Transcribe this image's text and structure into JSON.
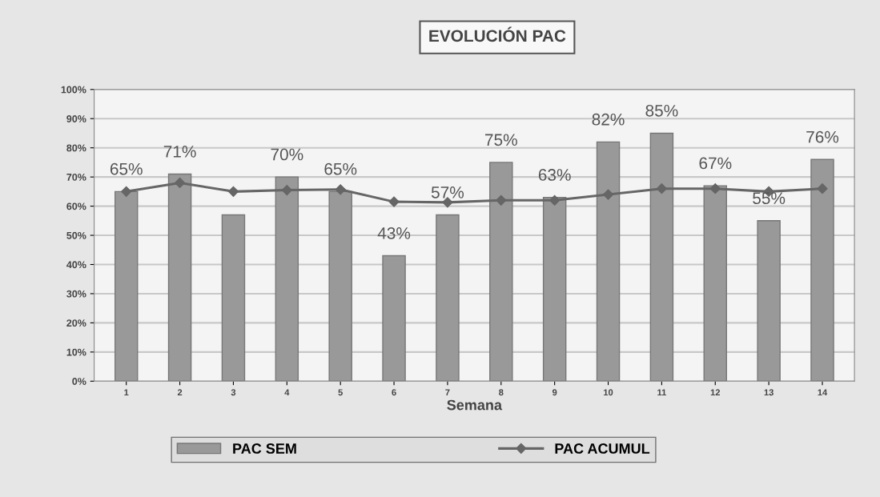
{
  "chart_data": {
    "type": "bar",
    "title": "EVOLUCIÓN PAC",
    "xlabel": "Semana",
    "categories": [
      "1",
      "2",
      "3",
      "4",
      "5",
      "6",
      "7",
      "8",
      "9",
      "10",
      "11",
      "12",
      "13",
      "14"
    ],
    "series": [
      {
        "name": "PAC SEM",
        "color": "#999999",
        "values": [
          65,
          71,
          57,
          70,
          65,
          43,
          57,
          75,
          63,
          82,
          85,
          67,
          55,
          76
        ],
        "value_labels": [
          "65%",
          "71%",
          null,
          "70%",
          "65%",
          "43%",
          "57%",
          "75%",
          "63%",
          "82%",
          "85%",
          "67%",
          "55%",
          "76%"
        ]
      },
      {
        "name": "PAC ACUMUL",
        "type": "line",
        "color": "#666666",
        "marker": "diamond",
        "values": [
          65,
          68,
          65,
          65.5,
          65.7,
          61.5,
          61.3,
          62,
          62,
          64,
          66,
          66,
          65,
          66
        ]
      }
    ],
    "ylim": [
      0,
      100
    ],
    "yticks": [
      {
        "value": 0,
        "label": "0%"
      },
      {
        "value": 10,
        "label": "10%"
      },
      {
        "value": 20,
        "label": "20%"
      },
      {
        "value": 30,
        "label": "30%"
      },
      {
        "value": 40,
        "label": "40%"
      },
      {
        "value": 50,
        "label": "50%"
      },
      {
        "value": 60,
        "label": "60%"
      },
      {
        "value": 70,
        "label": "70%"
      },
      {
        "value": 80,
        "label": "80%"
      },
      {
        "value": 90,
        "label": "90%"
      },
      {
        "value": 100,
        "label": "100%"
      }
    ],
    "grid": "y",
    "legend": "bottom"
  }
}
